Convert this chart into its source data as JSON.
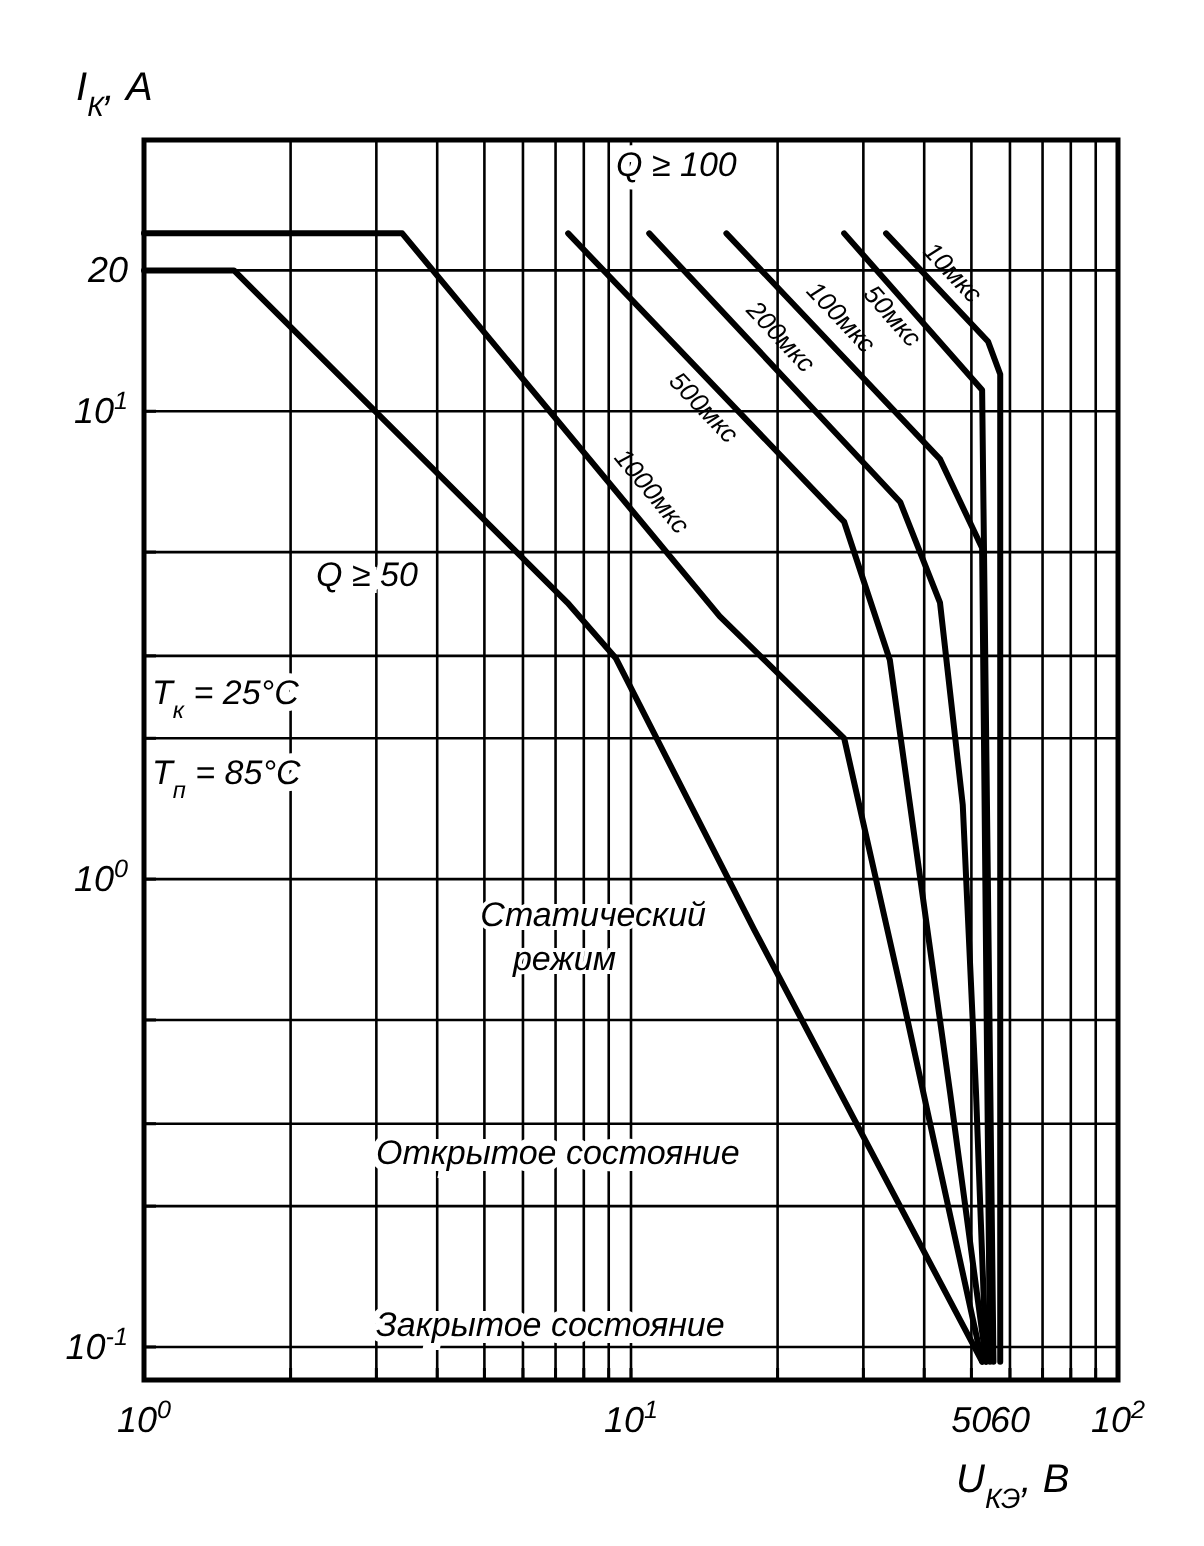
{
  "chart_data": {
    "type": "line",
    "xlabel": "U$_{КЭ}$, В",
    "ylabel": "I$_{К}$, А",
    "log": "xy",
    "grid": true,
    "marker": "none",
    "line_style": "solid",
    "xlim": [
      1,
      100
    ],
    "ylim": [
      0.085,
      38
    ],
    "xticks": [
      {
        "value": 1,
        "label": "10$^{0}$"
      },
      {
        "value": 2,
        "label": null
      },
      {
        "value": 3,
        "label": null
      },
      {
        "value": 4,
        "label": null
      },
      {
        "value": 5,
        "label": null
      },
      {
        "value": 6,
        "label": null
      },
      {
        "value": 7,
        "label": null
      },
      {
        "value": 8,
        "label": null
      },
      {
        "value": 9,
        "label": null
      },
      {
        "value": 10,
        "label": "10$^{1}$"
      },
      {
        "value": 20,
        "label": null
      },
      {
        "value": 30,
        "label": null
      },
      {
        "value": 40,
        "label": null
      },
      50,
      60,
      {
        "value": 70,
        "label": null
      },
      {
        "value": 80,
        "label": null
      },
      {
        "value": 90,
        "label": null
      },
      {
        "value": 100,
        "label": "10$^{2}$"
      }
    ],
    "yticks": [
      {
        "value": 0.1,
        "label": "10$^{-1}$"
      },
      {
        "value": 0.2,
        "label": null
      },
      {
        "value": 0.3,
        "label": null
      },
      {
        "value": 0.5,
        "label": null
      },
      {
        "value": 1,
        "label": "10$^{0}$"
      },
      {
        "value": 2,
        "label": null
      },
      {
        "value": 3,
        "label": null
      },
      {
        "value": 5,
        "label": null
      },
      {
        "value": 10,
        "label": "10$^{1}$"
      },
      20
    ],
    "series": [
      {
        "name": "Статический режим",
        "color": "#000000",
        "x": [
          1,
          1.53,
          7.4,
          9.3,
          17.9,
          52.6
        ],
        "values": [
          20,
          20,
          3.9,
          2.97,
          0.78,
          0.093
        ]
      },
      {
        "name": "1000мкс",
        "color": "#000000",
        "x": [
          1,
          3.39,
          15.2,
          27.4,
          35.7,
          52.6
        ],
        "values": [
          24,
          24,
          3.65,
          2.0,
          0.59,
          0.093
        ]
      },
      {
        "name": "500мкс",
        "color": "#000000",
        "x": [
          7.43,
          27.4,
          34.0,
          45.2,
          53.6
        ],
        "values": [
          24,
          5.8,
          2.94,
          0.35,
          0.093
        ]
      },
      {
        "name": "200мкс",
        "color": "#000000",
        "x": [
          10.9,
          35.7,
          43.1,
          48.0,
          51.1,
          53.6
        ],
        "values": [
          24,
          6.4,
          3.9,
          1.44,
          0.35,
          0.093
        ]
      },
      {
        "name": "100мкс",
        "color": "#000000",
        "x": [
          15.7,
          43.1,
          52.6,
          54.6
        ],
        "values": [
          24,
          7.9,
          5.1,
          0.093
        ]
      },
      {
        "name": "50мкс",
        "color": "#000000",
        "x": [
          27.4,
          52.6,
          55.5
        ],
        "values": [
          24,
          11.1,
          0.093
        ]
      },
      {
        "name": "10мкс",
        "color": "#000000",
        "x": [
          33.4,
          54.1,
          57.3,
          57.3
        ],
        "values": [
          24,
          14.1,
          12.0,
          0.093
        ]
      }
    ],
    "annotations": [
      "Q ≥ 100",
      "Q ≥ 50",
      "T$_{к}$ = 25°C",
      "T$_{п}$ = 85°C",
      "Открытое состояние",
      "Закрытое состояние"
    ]
  }
}
